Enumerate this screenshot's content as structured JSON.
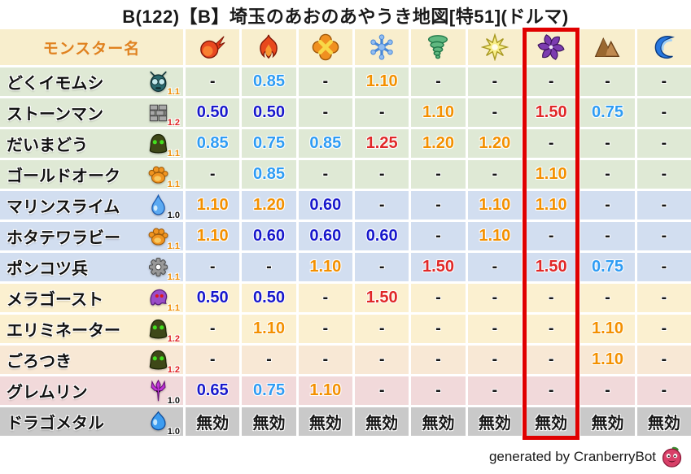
{
  "title": "B(122)【B】埼玉のあおのあやうき地図[特51](ドルマ)",
  "footer": {
    "credit": "generated by CranberryBot",
    "icon": "cranberry-bot-icon"
  },
  "table": {
    "name_header": "モンスター名",
    "elements": [
      {
        "icon": "fireball-icon"
      },
      {
        "icon": "flame-icon"
      },
      {
        "icon": "burst-icon"
      },
      {
        "icon": "ice-icon"
      },
      {
        "icon": "wind-icon"
      },
      {
        "icon": "spark-icon"
      },
      {
        "icon": "dark-pinwheel-icon",
        "highlighted": true
      },
      {
        "icon": "mountain-icon"
      },
      {
        "icon": "wave-icon"
      }
    ],
    "rows": [
      {
        "name": "どくイモムシ",
        "family_icon": "bug-icon",
        "modifier": "1.1",
        "tint": "green",
        "values": [
          "-",
          "0.85",
          "-",
          "1.10",
          "-",
          "-",
          "-",
          "-",
          "-"
        ]
      },
      {
        "name": "ストーンマン",
        "family_icon": "brick-icon",
        "modifier": "1.2",
        "tint": "green",
        "values": [
          "0.50",
          "0.50",
          "-",
          "-",
          "1.10",
          "-",
          "1.50",
          "0.75",
          "-"
        ]
      },
      {
        "name": "だいまどう",
        "family_icon": "hood-icon",
        "modifier": "1.1",
        "tint": "green",
        "values": [
          "0.85",
          "0.75",
          "0.85",
          "1.25",
          "1.20",
          "1.20",
          "-",
          "-",
          "-"
        ]
      },
      {
        "name": "ゴールドオーク",
        "family_icon": "paw-icon",
        "modifier": "1.1",
        "tint": "green",
        "values": [
          "-",
          "0.85",
          "-",
          "-",
          "-",
          "-",
          "1.10",
          "-",
          "-"
        ]
      },
      {
        "name": "マリンスライム",
        "family_icon": "droplet-icon",
        "modifier": "1.0",
        "tint": "blue",
        "values": [
          "1.10",
          "1.20",
          "0.60",
          "-",
          "-",
          "1.10",
          "1.10",
          "-",
          "-"
        ]
      },
      {
        "name": "ホタテワラビー",
        "family_icon": "paw-icon",
        "modifier": "1.1",
        "tint": "blue",
        "values": [
          "1.10",
          "0.60",
          "0.60",
          "0.60",
          "-",
          "1.10",
          "-",
          "-",
          "-"
        ]
      },
      {
        "name": "ポンコツ兵",
        "family_icon": "gear-icon",
        "modifier": "1.1",
        "tint": "blue",
        "values": [
          "-",
          "-",
          "1.10",
          "-",
          "1.50",
          "-",
          "1.50",
          "0.75",
          "-"
        ]
      },
      {
        "name": "メラゴースト",
        "family_icon": "ghost-icon",
        "modifier": "1.1",
        "tint": "cream",
        "values": [
          "0.50",
          "0.50",
          "-",
          "1.50",
          "-",
          "-",
          "-",
          "-",
          "-"
        ]
      },
      {
        "name": "エリミネーター",
        "family_icon": "hood-icon",
        "modifier": "1.2",
        "tint": "cream",
        "values": [
          "-",
          "1.10",
          "-",
          "-",
          "-",
          "-",
          "-",
          "1.10",
          "-"
        ]
      },
      {
        "name": "ごろつき",
        "family_icon": "hood-icon",
        "modifier": "1.2",
        "tint": "peach",
        "values": [
          "-",
          "-",
          "-",
          "-",
          "-",
          "-",
          "-",
          "1.10",
          "-"
        ]
      },
      {
        "name": "グレムリン",
        "family_icon": "trident-icon",
        "modifier": "1.0",
        "tint": "pink",
        "values": [
          "0.65",
          "0.75",
          "1.10",
          "-",
          "-",
          "-",
          "-",
          "-",
          "-"
        ]
      },
      {
        "name": "ドラゴメタル",
        "family_icon": "slime-icon",
        "modifier": "1.0",
        "tint": "gray",
        "values": [
          "無効",
          "無効",
          "無効",
          "無効",
          "無効",
          "無効",
          "無効",
          "無効",
          "無効"
        ]
      }
    ],
    "palette": {
      "header_bg": "#f8eecd",
      "header_text": "#e08220",
      "tints": {
        "green": "#dfe9d5",
        "blue": "#d2def0",
        "cream": "#fbf0d0",
        "peach": "#f8e8d5",
        "pink": "#f1d9da",
        "gray": "#c9c9c9"
      },
      "value_colors": {
        "0.50": "#1818cc",
        "0.60": "#1818cc",
        "0.65": "#1818cc",
        "0.75": "#2e9cf4",
        "0.85": "#2e9cf4",
        "1.10": "#f39000",
        "1.20": "#f39000",
        "1.25": "#e02828",
        "1.50": "#e02828",
        "-": "#161616",
        "無効": "#161616"
      },
      "modifier_colors": {
        "1.0": "#111111",
        "1.1": "#f08c00",
        "1.2": "#e02424"
      },
      "highlight_box": "#e00000"
    }
  }
}
